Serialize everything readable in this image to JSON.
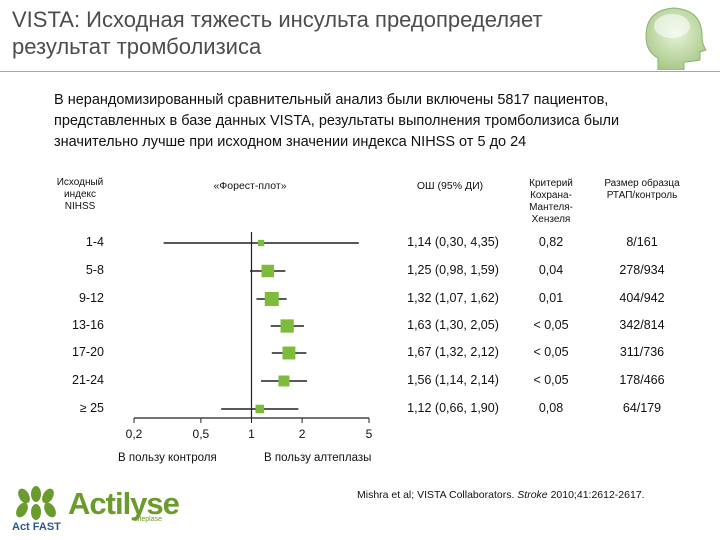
{
  "slide": {
    "title": "VISTA: Исходная тяжесть инсульта предопределяет результат тромболизиса",
    "intro": "В нерандомизированный сравнительный анализ были включены 5817 пациентов, представленных в базе данных VISTA, результаты выполнения тромболизиса были значительно лучше при исходном значении индекса NIHSS от 5 до 24",
    "footnote_pre": "Mishra et al; VISTA Collaborators. ",
    "footnote_journal": "Stroke",
    "footnote_post": " 2010;41:2612-2617."
  },
  "table": {
    "headers": {
      "nihss": "Исходный индекс NIHSS",
      "forest": "«Форест-плот»",
      "or": "ОШ (95% ДИ)",
      "cmh": "Критерий Кохрана-Мантеля-Хензеля",
      "sample": "Размер образца РТАП/контроль"
    },
    "rows": [
      {
        "label": "1-4",
        "or_text": "1,14 (0,30, 4,35)",
        "cmh": "0,82",
        "sample": "8/161"
      },
      {
        "label": "5-8",
        "or_text": "1,25 (0,98, 1,59)",
        "cmh": "0,04",
        "sample": "278/934"
      },
      {
        "label": "9-12",
        "or_text": "1,32 (1,07, 1,62)",
        "cmh": "0,01",
        "sample": "404/942"
      },
      {
        "label": "13-16",
        "or_text": "1,63 (1,30, 2,05)",
        "cmh": "< 0,05",
        "sample": "342/814"
      },
      {
        "label": "17-20",
        "or_text": "1,67 (1,32, 2,12)",
        "cmh": "< 0,05",
        "sample": "311/736"
      },
      {
        "label": "21-24",
        "or_text": "1,56 (1,14, 2,14)",
        "cmh": "< 0,05",
        "sample": "178/466"
      },
      {
        "label": "≥ 25",
        "or_text": "1,12 (0,66, 1,90)",
        "cmh": "0,08",
        "sample": "64/179"
      }
    ],
    "axis": {
      "ticks": [
        0.2,
        0.5,
        1,
        2,
        5
      ],
      "tick_labels": [
        "0,2",
        "0,5",
        "1",
        "2",
        "5"
      ],
      "left_label": "В пользу контроля",
      "right_label": "В пользу алтеплазы"
    }
  },
  "chart_data": {
    "type": "scatter",
    "scale": "log",
    "xlim": [
      0.2,
      5
    ],
    "reference_line": 1,
    "categories": [
      "1-4",
      "5-8",
      "9-12",
      "13-16",
      "17-20",
      "21-24",
      "≥ 25"
    ],
    "estimates": [
      1.14,
      1.25,
      1.32,
      1.63,
      1.67,
      1.56,
      1.12
    ],
    "lower": [
      0.3,
      0.98,
      1.07,
      1.3,
      1.32,
      1.14,
      0.66
    ],
    "upper": [
      4.35,
      1.59,
      1.62,
      2.05,
      2.12,
      2.14,
      1.9
    ],
    "weights": [
      8,
      278,
      404,
      342,
      311,
      178,
      64
    ],
    "marker_color": "#7dbb3a"
  },
  "brand": {
    "name": "Actilyse",
    "sub": "alteplase",
    "tagline": "Act FAST",
    "color": "#6b9a2d",
    "tag_color": "#2b5a8c"
  }
}
